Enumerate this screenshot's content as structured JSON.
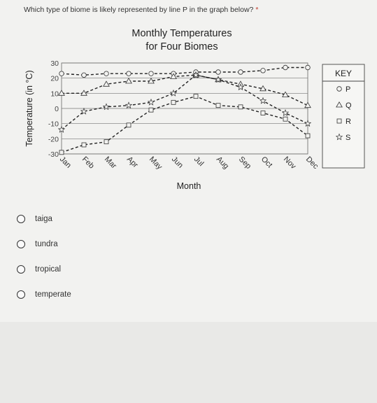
{
  "question": {
    "text": "Which type of biome is likely represented by line P in the graph below?",
    "required_mark": "*"
  },
  "chart_data": {
    "type": "line",
    "title": "Monthly Temperatures",
    "subtitle": "for Four Biomes",
    "xlabel": "Month",
    "ylabel": "Temperature (in °C)",
    "categories": [
      "Jan",
      "Feb",
      "Mar",
      "Apr",
      "May",
      "Jun",
      "Jul",
      "Aug",
      "Sep",
      "Oct",
      "Nov",
      "Dec"
    ],
    "ylim": [
      -30,
      30
    ],
    "yticks": [
      30,
      20,
      10,
      0,
      -10,
      -20,
      -30
    ],
    "grid": true,
    "legend_title": "KEY",
    "legend_placement": "right",
    "series": [
      {
        "name": "P",
        "marker": "circle",
        "values": [
          23,
          22,
          23,
          23,
          23,
          23,
          24,
          24,
          24,
          25,
          27,
          27
        ]
      },
      {
        "name": "Q",
        "marker": "triangle",
        "values": [
          10,
          10,
          16,
          18,
          18,
          21,
          22,
          19,
          16,
          13,
          9,
          2
        ]
      },
      {
        "name": "R",
        "marker": "square",
        "values": [
          -29,
          -24,
          -22,
          -11,
          -1,
          4,
          8,
          2,
          1,
          -3,
          -7,
          -18
        ]
      },
      {
        "name": "S",
        "marker": "star",
        "values": [
          -14,
          -2,
          1,
          2,
          4,
          10,
          22,
          19,
          14,
          5,
          -3,
          -10
        ]
      }
    ]
  },
  "options": [
    {
      "label": "taiga"
    },
    {
      "label": "tundra"
    },
    {
      "label": "tropical"
    },
    {
      "label": "temperate"
    }
  ]
}
